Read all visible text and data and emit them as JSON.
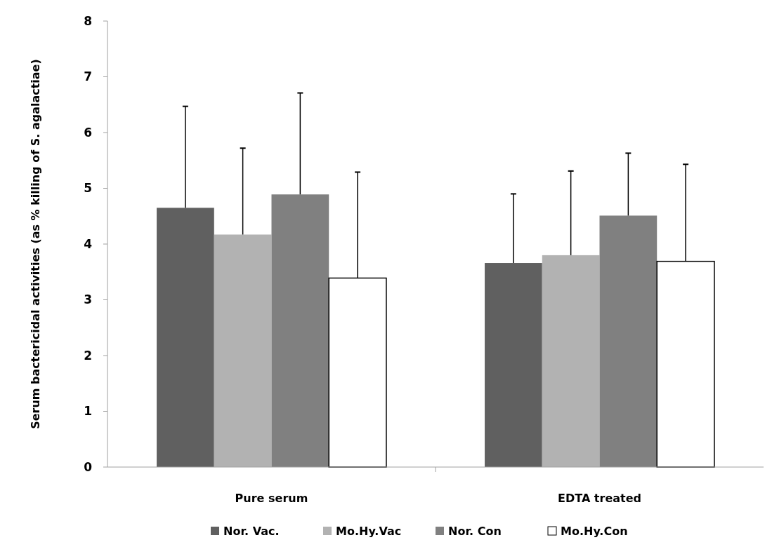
{
  "chart_data": {
    "type": "bar",
    "ylabel": "Serum bactericidal activities (as % killing of S. agalactiae)",
    "categories": [
      "Pure serum",
      "EDTA treated"
    ],
    "series": [
      {
        "name": "Nor. Vac.",
        "color": "#606060",
        "values": [
          4.65,
          3.66
        ],
        "errors": [
          [
            4.65,
            6.47
          ],
          [
            3.66,
            4.9
          ]
        ]
      },
      {
        "name": "Mo.Hy.Vac",
        "color": "#b2b2b2",
        "values": [
          4.17,
          3.8
        ],
        "errors": [
          [
            4.17,
            5.72
          ],
          [
            3.8,
            5.31
          ]
        ]
      },
      {
        "name": "Nor. Con",
        "color": "#808080",
        "values": [
          4.89,
          4.51
        ],
        "errors": [
          [
            4.89,
            6.71
          ],
          [
            4.51,
            5.63
          ]
        ]
      },
      {
        "name": "Mo.Hy.Con",
        "color": "#ffffff",
        "values": [
          3.39,
          3.69
        ],
        "errors": [
          [
            3.39,
            5.29
          ],
          [
            3.69,
            5.43
          ]
        ]
      }
    ],
    "ylim": [
      0,
      8
    ],
    "yticks": [
      0,
      1,
      2,
      3,
      4,
      5,
      6,
      7,
      8
    ],
    "grid": false,
    "legend": "bottom"
  }
}
